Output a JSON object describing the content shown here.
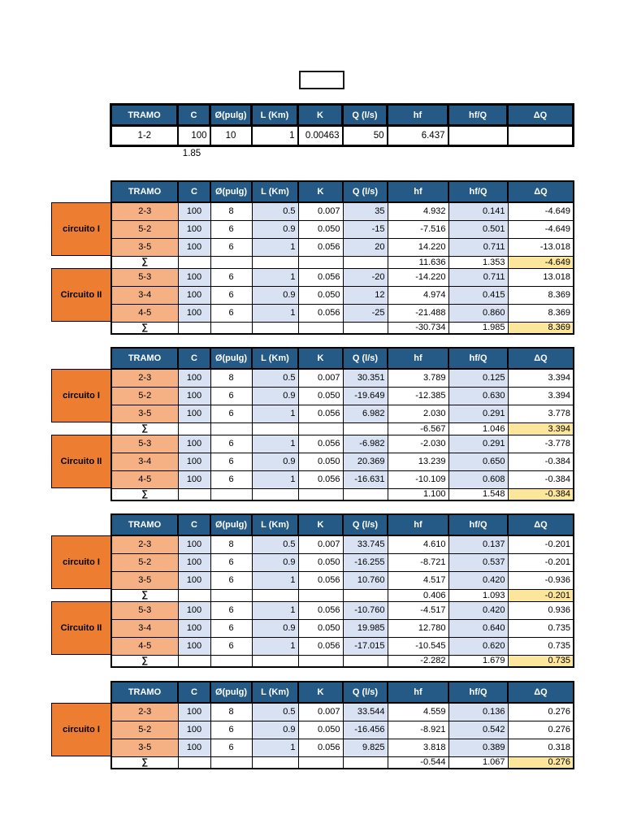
{
  "colors": {
    "page_bg": "#ffffff",
    "header_bg": "#255a87",
    "header_text": "#ffffff",
    "label_bg": "#ed7d31",
    "tramo_bg": "#f5b183",
    "blue_bg": "#d9e2f3",
    "sum_dq_bg": "#fce69c",
    "border": "#000000"
  },
  "columns": [
    "TRAMO",
    "C",
    "Ø(pulg)",
    "L (Km)",
    "K",
    "Q (l/s)",
    "hf",
    "hf/Q",
    "ΔQ"
  ],
  "sigma_symbol": "∑",
  "exponent_note": "1.85",
  "intro_table": {
    "rows": [
      {
        "tramo": "1-2",
        "c": "100",
        "dia": "10",
        "l": "1",
        "k": "0.00463",
        "q": "50",
        "hf": "6.437",
        "hfq": "",
        "dq": ""
      }
    ]
  },
  "iteration_tables": [
    {
      "groups": [
        {
          "label": "circuito I",
          "rows": [
            {
              "tramo": "2-3",
              "c": "100",
              "dia": "8",
              "l": "0.5",
              "k": "0.007",
              "q": "35",
              "hf": "4.932",
              "hfq": "0.141",
              "dq": "-4.649"
            },
            {
              "tramo": "5-2",
              "c": "100",
              "dia": "6",
              "l": "0.9",
              "k": "0.050",
              "q": "-15",
              "hf": "-7.516",
              "hfq": "0.501",
              "dq": "-4.649"
            },
            {
              "tramo": "3-5",
              "c": "100",
              "dia": "6",
              "l": "1",
              "k": "0.056",
              "q": "20",
              "hf": "14.220",
              "hfq": "0.711",
              "dq": "-13.018"
            }
          ],
          "sum": {
            "hf": "11.636",
            "hfq": "1.353",
            "dq": "-4.649"
          }
        },
        {
          "label": "Circuito II",
          "rows": [
            {
              "tramo": "5-3",
              "c": "100",
              "dia": "6",
              "l": "1",
              "k": "0.056",
              "q": "-20",
              "hf": "-14.220",
              "hfq": "0.711",
              "dq": "13.018"
            },
            {
              "tramo": "3-4",
              "c": "100",
              "dia": "6",
              "l": "0.9",
              "k": "0.050",
              "q": "12",
              "hf": "4.974",
              "hfq": "0.415",
              "dq": "8.369"
            },
            {
              "tramo": "4-5",
              "c": "100",
              "dia": "6",
              "l": "1",
              "k": "0.056",
              "q": "-25",
              "hf": "-21.488",
              "hfq": "0.860",
              "dq": "8.369"
            }
          ],
          "sum": {
            "hf": "-30.734",
            "hfq": "1.985",
            "dq": "8.369"
          }
        }
      ]
    },
    {
      "groups": [
        {
          "label": "circuito I",
          "rows": [
            {
              "tramo": "2-3",
              "c": "100",
              "dia": "8",
              "l": "0.5",
              "k": "0.007",
              "q": "30.351",
              "hf": "3.789",
              "hfq": "0.125",
              "dq": "3.394"
            },
            {
              "tramo": "5-2",
              "c": "100",
              "dia": "6",
              "l": "0.9",
              "k": "0.050",
              "q": "-19.649",
              "hf": "-12.385",
              "hfq": "0.630",
              "dq": "3.394"
            },
            {
              "tramo": "3-5",
              "c": "100",
              "dia": "6",
              "l": "1",
              "k": "0.056",
              "q": "6.982",
              "hf": "2.030",
              "hfq": "0.291",
              "dq": "3.778"
            }
          ],
          "sum": {
            "hf": "-6.567",
            "hfq": "1.046",
            "dq": "3.394"
          }
        },
        {
          "label": "Circuito II",
          "rows": [
            {
              "tramo": "5-3",
              "c": "100",
              "dia": "6",
              "l": "1",
              "k": "0.056",
              "q": "-6.982",
              "hf": "-2.030",
              "hfq": "0.291",
              "dq": "-3.778"
            },
            {
              "tramo": "3-4",
              "c": "100",
              "dia": "6",
              "l": "0.9",
              "k": "0.050",
              "q": "20.369",
              "hf": "13.239",
              "hfq": "0.650",
              "dq": "-0.384"
            },
            {
              "tramo": "4-5",
              "c": "100",
              "dia": "6",
              "l": "1",
              "k": "0.056",
              "q": "-16.631",
              "hf": "-10.109",
              "hfq": "0.608",
              "dq": "-0.384"
            }
          ],
          "sum": {
            "hf": "1.100",
            "hfq": "1.548",
            "dq": "-0.384"
          }
        }
      ]
    },
    {
      "groups": [
        {
          "label": "circuito I",
          "rows": [
            {
              "tramo": "2-3",
              "c": "100",
              "dia": "8",
              "l": "0.5",
              "k": "0.007",
              "q": "33.745",
              "hf": "4.610",
              "hfq": "0.137",
              "dq": "-0.201"
            },
            {
              "tramo": "5-2",
              "c": "100",
              "dia": "6",
              "l": "0.9",
              "k": "0.050",
              "q": "-16.255",
              "hf": "-8.721",
              "hfq": "0.537",
              "dq": "-0.201"
            },
            {
              "tramo": "3-5",
              "c": "100",
              "dia": "6",
              "l": "1",
              "k": "0.056",
              "q": "10.760",
              "hf": "4.517",
              "hfq": "0.420",
              "dq": "-0.936"
            }
          ],
          "sum": {
            "hf": "0.406",
            "hfq": "1.093",
            "dq": "-0.201"
          }
        },
        {
          "label": "Circuito II",
          "rows": [
            {
              "tramo": "5-3",
              "c": "100",
              "dia": "6",
              "l": "1",
              "k": "0.056",
              "q": "-10.760",
              "hf": "-4.517",
              "hfq": "0.420",
              "dq": "0.936"
            },
            {
              "tramo": "3-4",
              "c": "100",
              "dia": "6",
              "l": "0.9",
              "k": "0.050",
              "q": "19.985",
              "hf": "12.780",
              "hfq": "0.640",
              "dq": "0.735"
            },
            {
              "tramo": "4-5",
              "c": "100",
              "dia": "6",
              "l": "1",
              "k": "0.056",
              "q": "-17.015",
              "hf": "-10.545",
              "hfq": "0.620",
              "dq": "0.735"
            }
          ],
          "sum": {
            "hf": "-2.282",
            "hfq": "1.679",
            "dq": "0.735"
          }
        }
      ]
    },
    {
      "groups": [
        {
          "label": "circuito I",
          "rows": [
            {
              "tramo": "2-3",
              "c": "100",
              "dia": "8",
              "l": "0.5",
              "k": "0.007",
              "q": "33.544",
              "hf": "4.559",
              "hfq": "0.136",
              "dq": "0.276"
            },
            {
              "tramo": "5-2",
              "c": "100",
              "dia": "6",
              "l": "0.9",
              "k": "0.050",
              "q": "-16.456",
              "hf": "-8.921",
              "hfq": "0.542",
              "dq": "0.276"
            },
            {
              "tramo": "3-5",
              "c": "100",
              "dia": "6",
              "l": "1",
              "k": "0.056",
              "q": "9.825",
              "hf": "3.818",
              "hfq": "0.389",
              "dq": "0.318"
            }
          ],
          "sum": {
            "hf": "-0.544",
            "hfq": "1.067",
            "dq": "0.276"
          }
        }
      ]
    }
  ]
}
